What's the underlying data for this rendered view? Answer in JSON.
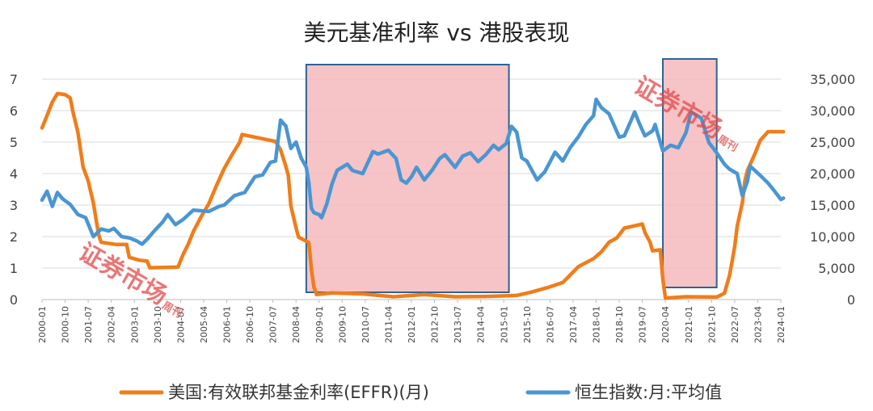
{
  "chart_data": {
    "type": "line",
    "title": "美元基准利率 vs 港股表现",
    "left_axis": {
      "ylim": [
        0,
        7
      ],
      "ticks": [
        "0",
        "1",
        "2",
        "3",
        "4",
        "5",
        "6",
        "7"
      ]
    },
    "right_axis": {
      "ylim": [
        0,
        35000
      ],
      "ticks": [
        "0",
        "5,000",
        "10,000",
        "15,000",
        "20,000",
        "25,000",
        "30,000",
        "35,000"
      ]
    },
    "x_tick_labels": [
      "2000-01",
      "2000-10",
      "2001-07",
      "2002-04",
      "2003-01",
      "2003-10",
      "2004-07",
      "2005-04",
      "2006-01",
      "2006-10",
      "2007-07",
      "2008-04",
      "2009-01",
      "2009-10",
      "2010-07",
      "2011-04",
      "2012-01",
      "2012-10",
      "2013-07",
      "2014-04",
      "2015-01",
      "2015-10",
      "2016-07",
      "2017-04",
      "2018-01",
      "2018-10",
      "2019-07",
      "2020-04",
      "2021-01",
      "2021-10",
      "2022-07",
      "2023-04",
      "2024-01"
    ],
    "grid": true,
    "legend_position": "bottom",
    "highlights": [
      {
        "from": "2008-08",
        "to": "2015-03"
      },
      {
        "from": "2020-03",
        "to": "2021-12"
      }
    ],
    "series": [
      {
        "name": "美国:有效联邦基金利率(EFFR)(月)",
        "axis": "left",
        "color": "#f07d1a",
        "points": [
          [
            "2000-01",
            5.45
          ],
          [
            "2000-03",
            5.85
          ],
          [
            "2000-05",
            6.27
          ],
          [
            "2000-07",
            6.54
          ],
          [
            "2000-10",
            6.51
          ],
          [
            "2000-12",
            6.4
          ],
          [
            "2001-01",
            5.98
          ],
          [
            "2001-03",
            5.31
          ],
          [
            "2001-05",
            4.21
          ],
          [
            "2001-07",
            3.77
          ],
          [
            "2001-09",
            3.07
          ],
          [
            "2001-11",
            2.09
          ],
          [
            "2001-12",
            1.82
          ],
          [
            "2002-06",
            1.75
          ],
          [
            "2002-10",
            1.75
          ],
          [
            "2002-11",
            1.34
          ],
          [
            "2003-03",
            1.25
          ],
          [
            "2003-06",
            1.22
          ],
          [
            "2003-07",
            1.01
          ],
          [
            "2004-06",
            1.03
          ],
          [
            "2004-08",
            1.43
          ],
          [
            "2004-10",
            1.76
          ],
          [
            "2004-12",
            2.16
          ],
          [
            "2005-03",
            2.63
          ],
          [
            "2005-06",
            3.04
          ],
          [
            "2005-09",
            3.62
          ],
          [
            "2005-12",
            4.16
          ],
          [
            "2006-03",
            4.59
          ],
          [
            "2006-06",
            4.99
          ],
          [
            "2006-07",
            5.24
          ],
          [
            "2007-08",
            5.02
          ],
          [
            "2007-10",
            4.76
          ],
          [
            "2007-12",
            4.24
          ],
          [
            "2008-01",
            3.94
          ],
          [
            "2008-02",
            2.98
          ],
          [
            "2008-04",
            2.28
          ],
          [
            "2008-05",
            1.98
          ],
          [
            "2008-09",
            1.81
          ],
          [
            "2008-10",
            0.97
          ],
          [
            "2008-11",
            0.39
          ],
          [
            "2008-12",
            0.16
          ],
          [
            "2009-06",
            0.21
          ],
          [
            "2010-06",
            0.18
          ],
          [
            "2011-06",
            0.09
          ],
          [
            "2012-06",
            0.16
          ],
          [
            "2013-06",
            0.09
          ],
          [
            "2014-06",
            0.1
          ],
          [
            "2015-06",
            0.13
          ],
          [
            "2015-12",
            0.24
          ],
          [
            "2016-06",
            0.38
          ],
          [
            "2016-12",
            0.54
          ],
          [
            "2017-03",
            0.79
          ],
          [
            "2017-06",
            1.04
          ],
          [
            "2017-12",
            1.3
          ],
          [
            "2018-03",
            1.51
          ],
          [
            "2018-06",
            1.82
          ],
          [
            "2018-09",
            1.95
          ],
          [
            "2018-12",
            2.27
          ],
          [
            "2019-06",
            2.38
          ],
          [
            "2019-07",
            2.4
          ],
          [
            "2019-08",
            2.13
          ],
          [
            "2019-10",
            1.83
          ],
          [
            "2019-11",
            1.55
          ],
          [
            "2020-02",
            1.58
          ],
          [
            "2020-03",
            0.65
          ],
          [
            "2020-04",
            0.05
          ],
          [
            "2020-12",
            0.09
          ],
          [
            "2021-12",
            0.08
          ],
          [
            "2022-03",
            0.2
          ],
          [
            "2022-05",
            0.77
          ],
          [
            "2022-06",
            1.21
          ],
          [
            "2022-07",
            1.68
          ],
          [
            "2022-08",
            2.33
          ],
          [
            "2022-10",
            3.08
          ],
          [
            "2022-11",
            3.78
          ],
          [
            "2022-12",
            4.1
          ],
          [
            "2023-03",
            4.65
          ],
          [
            "2023-05",
            5.06
          ],
          [
            "2023-08",
            5.33
          ],
          [
            "2024-02",
            5.33
          ]
        ]
      },
      {
        "name": "恒生指数:月:平均值",
        "axis": "right",
        "color": "#4a96d2",
        "points": [
          [
            "2000-01",
            15800
          ],
          [
            "2000-03",
            17200
          ],
          [
            "2000-05",
            14800
          ],
          [
            "2000-07",
            17000
          ],
          [
            "2000-09",
            16000
          ],
          [
            "2000-12",
            15100
          ],
          [
            "2001-03",
            13500
          ],
          [
            "2001-06",
            13000
          ],
          [
            "2001-08",
            11000
          ],
          [
            "2001-09",
            10000
          ],
          [
            "2001-12",
            11200
          ],
          [
            "2002-03",
            10900
          ],
          [
            "2002-05",
            11300
          ],
          [
            "2002-08",
            10000
          ],
          [
            "2002-11",
            9800
          ],
          [
            "2003-02",
            9300
          ],
          [
            "2003-04",
            8800
          ],
          [
            "2003-06",
            9600
          ],
          [
            "2003-09",
            11000
          ],
          [
            "2003-12",
            12300
          ],
          [
            "2004-02",
            13500
          ],
          [
            "2004-05",
            11900
          ],
          [
            "2004-08",
            12700
          ],
          [
            "2004-12",
            14200
          ],
          [
            "2005-06",
            14000
          ],
          [
            "2005-10",
            14800
          ],
          [
            "2005-12",
            15000
          ],
          [
            "2006-04",
            16500
          ],
          [
            "2006-08",
            17000
          ],
          [
            "2006-12",
            19500
          ],
          [
            "2007-03",
            19800
          ],
          [
            "2007-06",
            21800
          ],
          [
            "2007-08",
            22000
          ],
          [
            "2007-10",
            28500
          ],
          [
            "2007-11",
            28000
          ],
          [
            "2007-12",
            27600
          ],
          [
            "2008-02",
            24000
          ],
          [
            "2008-04",
            25000
          ],
          [
            "2008-06",
            22500
          ],
          [
            "2008-08",
            21000
          ],
          [
            "2008-09",
            18500
          ],
          [
            "2008-10",
            14500
          ],
          [
            "2008-11",
            13800
          ],
          [
            "2009-01",
            13500
          ],
          [
            "2009-02",
            13000
          ],
          [
            "2009-04",
            15200
          ],
          [
            "2009-06",
            18300
          ],
          [
            "2009-08",
            20500
          ],
          [
            "2009-12",
            21500
          ],
          [
            "2010-02",
            20500
          ],
          [
            "2010-06",
            20000
          ],
          [
            "2010-10",
            23500
          ],
          [
            "2010-12",
            23100
          ],
          [
            "2011-04",
            23700
          ],
          [
            "2011-07",
            22400
          ],
          [
            "2011-09",
            19000
          ],
          [
            "2011-11",
            18500
          ],
          [
            "2012-01",
            19500
          ],
          [
            "2012-03",
            21000
          ],
          [
            "2012-06",
            19000
          ],
          [
            "2012-09",
            20500
          ],
          [
            "2012-12",
            22400
          ],
          [
            "2013-02",
            23000
          ],
          [
            "2013-06",
            21000
          ],
          [
            "2013-09",
            22800
          ],
          [
            "2013-12",
            23300
          ],
          [
            "2014-03",
            21900
          ],
          [
            "2014-06",
            23000
          ],
          [
            "2014-09",
            24500
          ],
          [
            "2014-11",
            23800
          ],
          [
            "2015-02",
            24800
          ],
          [
            "2015-04",
            27500
          ],
          [
            "2015-06",
            26600
          ],
          [
            "2015-08",
            22500
          ],
          [
            "2015-10",
            22000
          ],
          [
            "2016-02",
            19000
          ],
          [
            "2016-05",
            20300
          ],
          [
            "2016-09",
            23400
          ],
          [
            "2016-12",
            22000
          ],
          [
            "2017-03",
            24200
          ],
          [
            "2017-06",
            25800
          ],
          [
            "2017-09",
            27800
          ],
          [
            "2017-12",
            29200
          ],
          [
            "2018-01",
            31800
          ],
          [
            "2018-03",
            30500
          ],
          [
            "2018-06",
            29500
          ],
          [
            "2018-10",
            25800
          ],
          [
            "2018-12",
            26000
          ],
          [
            "2019-03",
            28800
          ],
          [
            "2019-04",
            29800
          ],
          [
            "2019-06",
            27800
          ],
          [
            "2019-08",
            26000
          ],
          [
            "2019-11",
            26800
          ],
          [
            "2019-12",
            27800
          ],
          [
            "2020-01",
            26300
          ],
          [
            "2020-03",
            23600
          ],
          [
            "2020-06",
            24500
          ],
          [
            "2020-09",
            24100
          ],
          [
            "2020-12",
            26500
          ],
          [
            "2021-02",
            29800
          ],
          [
            "2021-06",
            28800
          ],
          [
            "2021-09",
            24900
          ],
          [
            "2021-12",
            23300
          ],
          [
            "2022-03",
            21500
          ],
          [
            "2022-05",
            20700
          ],
          [
            "2022-08",
            20000
          ],
          [
            "2022-10",
            16500
          ],
          [
            "2022-12",
            18800
          ],
          [
            "2023-01",
            21200
          ],
          [
            "2023-05",
            19700
          ],
          [
            "2023-08",
            18500
          ],
          [
            "2023-10",
            17500
          ],
          [
            "2024-01",
            15900
          ],
          [
            "2024-02",
            16100
          ]
        ]
      }
    ]
  },
  "legend": {
    "items": [
      {
        "label": "美国:有效联邦基金利率(EFFR)(月)",
        "color": "#f07d1a"
      },
      {
        "label": "恒生指数:月:平均值",
        "color": "#4a96d2"
      }
    ]
  },
  "watermarks": [
    {
      "text": "证券市场",
      "small": "周刊"
    },
    {
      "text": "证券市场",
      "small": "周刊"
    }
  ]
}
